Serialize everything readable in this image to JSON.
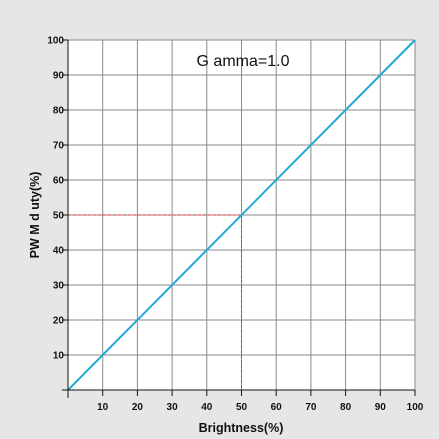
{
  "chart_data": {
    "type": "line",
    "xlabel": "Brightness(%)",
    "ylabel": "PW M d uty(%)",
    "xlim": [
      0,
      100
    ],
    "ylim": [
      0,
      100
    ],
    "x_ticks": [
      10,
      20,
      30,
      40,
      50,
      60,
      70,
      80,
      90,
      100
    ],
    "y_ticks": [
      10,
      20,
      30,
      40,
      50,
      60,
      70,
      80,
      90,
      100
    ],
    "grid": true,
    "annotation": "G amma=1.0",
    "series": [
      {
        "x": [
          0,
          100
        ],
        "y": [
          0,
          100
        ],
        "color": "#1fa9d6"
      }
    ],
    "reference": {
      "x": 50,
      "y": 50,
      "color": "#e0303a",
      "style": "dashed"
    }
  }
}
